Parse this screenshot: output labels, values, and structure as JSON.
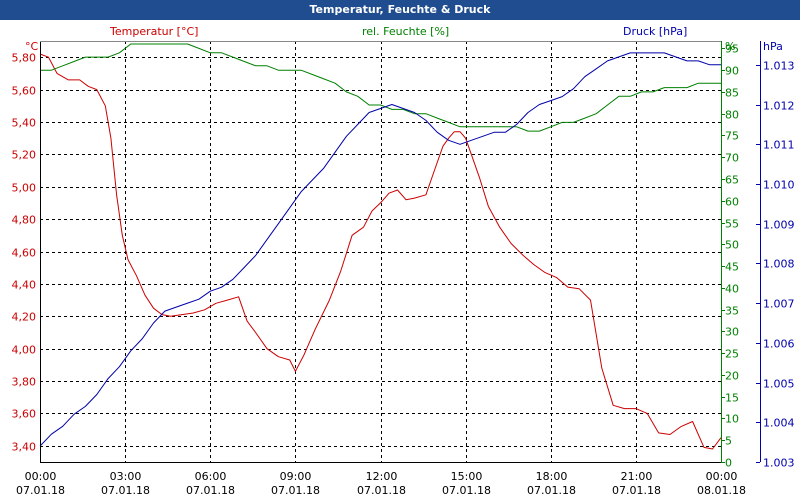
{
  "window": {
    "title": "Temperatur, Feuchte & Druck"
  },
  "colors": {
    "temperature": "#cc0000",
    "humidity": "#008000",
    "pressure": "#0000aa",
    "axis": "#000000",
    "grid": "#000000"
  },
  "chart_data": {
    "type": "line",
    "title": "Temperatur, Feuchte & Druck",
    "x": {
      "ticks": [
        "00:00",
        "03:00",
        "06:00",
        "09:00",
        "12:00",
        "15:00",
        "18:00",
        "21:00",
        "00:00"
      ],
      "dates": [
        "07.01.18",
        "07.01.18",
        "07.01.18",
        "07.01.18",
        "07.01.18",
        "07.01.18",
        "07.01.18",
        "07.01.18",
        "08.01.18"
      ],
      "range_hours": [
        0,
        24
      ]
    },
    "axes": {
      "temperature": {
        "unit": "°C",
        "title": "Temperatur [°C]",
        "range": [
          3.3,
          5.9
        ],
        "ticks": [
          "3,40",
          "3,60",
          "3,80",
          "4,00",
          "4,20",
          "4,40",
          "4,60",
          "4,80",
          "5,00",
          "5,20",
          "5,40",
          "5,60",
          "5,80"
        ],
        "tick_values": [
          3.4,
          3.6,
          3.8,
          4.0,
          4.2,
          4.4,
          4.6,
          4.8,
          5.0,
          5.2,
          5.4,
          5.6,
          5.8
        ]
      },
      "humidity": {
        "unit": "%",
        "title": "rel. Feuchte [%]",
        "range": [
          0,
          96.7
        ],
        "ticks": [
          "0",
          "5",
          "10",
          "15",
          "20",
          "25",
          "30",
          "35",
          "40",
          "45",
          "50",
          "55",
          "60",
          "65",
          "70",
          "75",
          "80",
          "85",
          "90",
          "95"
        ],
        "tick_values": [
          0,
          5,
          10,
          15,
          20,
          25,
          30,
          35,
          40,
          45,
          50,
          55,
          60,
          65,
          70,
          75,
          80,
          85,
          90,
          95
        ]
      },
      "pressure": {
        "unit": "hPa",
        "title": "Druck [hPa]",
        "range": [
          1.003,
          1.0136
        ],
        "ticks": [
          "1.003",
          "1.004",
          "1.005",
          "1.006",
          "1.007",
          "1.008",
          "1.009",
          "1.010",
          "1.011",
          "1.012",
          "1.013"
        ],
        "tick_values": [
          1.003,
          1.004,
          1.005,
          1.006,
          1.007,
          1.008,
          1.009,
          1.01,
          1.011,
          1.012,
          1.013
        ]
      }
    },
    "series": [
      {
        "name": "Temperatur [°C]",
        "axis": "temperature",
        "color": "#cc0000",
        "x": [
          0,
          0.3,
          0.6,
          1,
          1.4,
          1.7,
          2,
          2.3,
          2.5,
          2.7,
          2.9,
          3.1,
          3.4,
          3.7,
          4,
          4.3,
          4.6,
          5,
          5.4,
          5.8,
          6.2,
          6.6,
          7,
          7.3,
          7.6,
          8,
          8.4,
          8.8,
          9,
          9.3,
          9.7,
          10.2,
          10.6,
          11,
          11.4,
          11.7,
          12,
          12.3,
          12.6,
          12.9,
          13.2,
          13.6,
          13.9,
          14.2,
          14.4,
          14.6,
          14.8,
          15,
          15.2,
          15.5,
          15.8,
          16.2,
          16.6,
          17,
          17.4,
          17.8,
          18.2,
          18.6,
          19,
          19.4,
          19.8,
          20.2,
          20.6,
          21,
          21.4,
          21.8,
          22.2,
          22.6,
          23,
          23.4,
          23.7,
          24
        ],
        "values": [
          5.82,
          5.8,
          5.7,
          5.66,
          5.66,
          5.62,
          5.6,
          5.5,
          5.3,
          4.95,
          4.7,
          4.55,
          4.45,
          4.33,
          4.25,
          4.21,
          4.2,
          4.21,
          4.22,
          4.24,
          4.28,
          4.3,
          4.32,
          4.17,
          4.1,
          4.0,
          3.95,
          3.93,
          3.86,
          3.96,
          4.12,
          4.3,
          4.48,
          4.7,
          4.75,
          4.85,
          4.9,
          4.96,
          4.98,
          4.92,
          4.93,
          4.95,
          5.1,
          5.25,
          5.3,
          5.34,
          5.34,
          5.3,
          5.2,
          5.05,
          4.88,
          4.75,
          4.65,
          4.58,
          4.52,
          4.47,
          4.44,
          4.38,
          4.37,
          4.3,
          3.88,
          3.65,
          3.63,
          3.63,
          3.6,
          3.48,
          3.47,
          3.52,
          3.55,
          3.39,
          3.38,
          3.45
        ]
      },
      {
        "name": "rel. Feuchte [%]",
        "axis": "humidity",
        "color": "#008000",
        "x": [
          0,
          0.4,
          0.8,
          1.2,
          1.6,
          2,
          2.4,
          2.8,
          3.2,
          3.6,
          4,
          4.4,
          4.8,
          5.2,
          5.6,
          6,
          6.4,
          6.8,
          7.2,
          7.6,
          8,
          8.4,
          8.8,
          9.2,
          9.6,
          10,
          10.4,
          10.8,
          11.2,
          11.6,
          12,
          12.4,
          12.8,
          13.2,
          13.6,
          14,
          14.4,
          14.8,
          15.2,
          15.6,
          16,
          16.4,
          16.8,
          17.2,
          17.6,
          18,
          18.4,
          18.8,
          19.2,
          19.6,
          20,
          20.4,
          20.8,
          21.2,
          21.6,
          22,
          22.4,
          22.8,
          23.2,
          23.6,
          24
        ],
        "values": [
          90,
          90,
          91,
          92,
          93,
          93,
          93,
          94,
          96,
          96,
          96,
          96,
          96,
          96,
          95,
          94,
          94,
          93,
          92,
          91,
          91,
          90,
          90,
          90,
          89,
          88,
          87,
          85,
          84,
          82,
          82,
          81,
          81,
          80,
          80,
          79,
          78,
          77,
          77,
          77,
          77,
          77,
          77,
          76,
          76,
          77,
          78,
          78,
          79,
          80,
          82,
          84,
          84,
          85,
          85,
          86,
          86,
          86,
          87,
          87,
          87
        ]
      },
      {
        "name": "Druck [hPa]",
        "axis": "pressure",
        "color": "#0000aa",
        "x": [
          0,
          0.4,
          0.8,
          1.2,
          1.6,
          2,
          2.4,
          2.8,
          3.2,
          3.6,
          4,
          4.4,
          4.8,
          5.2,
          5.6,
          6,
          6.4,
          6.8,
          7.2,
          7.6,
          8,
          8.4,
          8.8,
          9.2,
          9.6,
          10,
          10.4,
          10.8,
          11.2,
          11.6,
          12,
          12.4,
          12.8,
          13.2,
          13.6,
          14,
          14.4,
          14.8,
          15.2,
          15.6,
          16,
          16.4,
          16.8,
          17.2,
          17.6,
          18,
          18.4,
          18.8,
          19.2,
          19.6,
          20,
          20.4,
          20.8,
          21.2,
          21.6,
          22,
          22.4,
          22.8,
          23.2,
          23.6,
          24
        ],
        "values": [
          1.0034,
          1.0037,
          1.0039,
          1.0042,
          1.0044,
          1.0047,
          1.0051,
          1.0054,
          1.0058,
          1.0061,
          1.0065,
          1.0068,
          1.0069,
          1.007,
          1.0071,
          1.0073,
          1.0074,
          1.0076,
          1.0079,
          1.0082,
          1.0086,
          1.009,
          1.0094,
          1.0098,
          1.0101,
          1.0104,
          1.0108,
          1.0112,
          1.0115,
          1.0118,
          1.0119,
          1.012,
          1.0119,
          1.0118,
          1.0116,
          1.0113,
          1.0111,
          1.011,
          1.0111,
          1.0112,
          1.0113,
          1.0113,
          1.0115,
          1.0118,
          1.012,
          1.0121,
          1.0122,
          1.0124,
          1.0127,
          1.0129,
          1.0131,
          1.0132,
          1.0133,
          1.0133,
          1.0133,
          1.0133,
          1.0132,
          1.0131,
          1.0131,
          1.013,
          1.013
        ]
      }
    ]
  }
}
